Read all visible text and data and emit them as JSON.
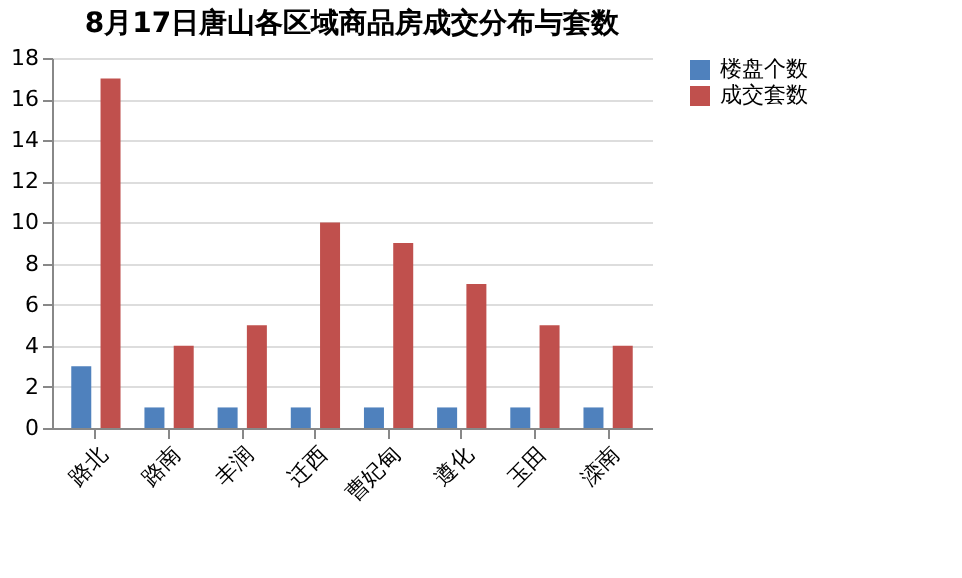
{
  "chart_data": {
    "type": "bar",
    "title": "8月17日唐山各区域商品房成交分布与套数",
    "categories": [
      "路北",
      "路南",
      "丰润",
      "迁西",
      "曹妃甸",
      "遵化",
      "玉田",
      "滦南"
    ],
    "series": [
      {
        "name": "楼盘个数",
        "color": "#4f81bd",
        "values": [
          3,
          1,
          1,
          1,
          1,
          1,
          1,
          1
        ]
      },
      {
        "name": "成交套数",
        "color": "#c0504d",
        "values": [
          17,
          4,
          5,
          10,
          9,
          7,
          5,
          4
        ]
      }
    ],
    "ylim": [
      0,
      18
    ],
    "yticks": [
      0,
      2,
      4,
      6,
      8,
      10,
      12,
      14,
      16,
      18
    ],
    "grid": "y",
    "legend": "right"
  }
}
